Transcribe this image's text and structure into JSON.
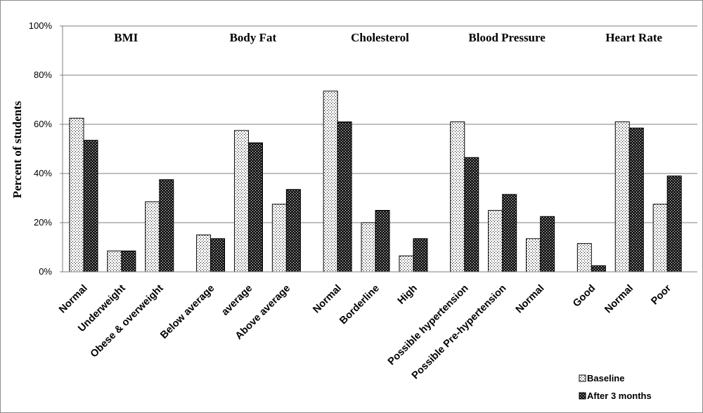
{
  "chart_data": {
    "type": "bar",
    "ylabel": "Percent of students",
    "ylim": [
      0,
      100
    ],
    "yticks": [
      0,
      20,
      40,
      60,
      80,
      100
    ],
    "ytick_labels": [
      "0%",
      "20%",
      "40%",
      "60%",
      "80%",
      "100%"
    ],
    "grid": true,
    "legend_position": "bottom-right",
    "series": [
      {
        "name": "Baseline",
        "pattern": "dotted-light"
      },
      {
        "name": "After 3 months",
        "pattern": "checker-dark"
      }
    ],
    "groups": [
      {
        "title": "BMI",
        "categories": [
          {
            "label": "Normal",
            "values": [
              62.5,
              53.5
            ]
          },
          {
            "label": "Underweight",
            "values": [
              8.5,
              8.5
            ]
          },
          {
            "label": "Obese & overweight",
            "values": [
              28.5,
              37.5
            ]
          }
        ]
      },
      {
        "title": "Body Fat",
        "categories": [
          {
            "label": "Below average",
            "values": [
              15,
              13.5
            ]
          },
          {
            "label": "average",
            "values": [
              57.5,
              52.5
            ]
          },
          {
            "label": "Above average",
            "values": [
              27.5,
              33.5
            ]
          }
        ]
      },
      {
        "title": "Cholesterol",
        "categories": [
          {
            "label": "Normal",
            "values": [
              73.5,
              61
            ]
          },
          {
            "label": "Borderline",
            "values": [
              20,
              25
            ]
          },
          {
            "label": "High",
            "values": [
              6.5,
              13.5
            ]
          }
        ]
      },
      {
        "title": "Blood Pressure",
        "categories": [
          {
            "label": "Possible hypertension",
            "values": [
              61,
              46.5
            ]
          },
          {
            "label": "Possible Pre-hypertension",
            "values": [
              25,
              31.5
            ]
          },
          {
            "label": "Normal",
            "values": [
              13.5,
              22.5
            ]
          }
        ]
      },
      {
        "title": "Heart  Rate",
        "categories": [
          {
            "label": "Good",
            "values": [
              11.5,
              2.5
            ]
          },
          {
            "label": "Normal",
            "values": [
              61,
              58.5
            ]
          },
          {
            "label": "Poor",
            "values": [
              27.5,
              39
            ]
          }
        ]
      }
    ]
  },
  "colors": {
    "grid": "#7f7f7f",
    "axis": "#7f7f7f",
    "bar_outline": "#000000",
    "baseline_fill": "#ffffff",
    "baseline_dot": "#000000",
    "after_fill": "#1a1a1a",
    "after_dot": "#ffffff"
  }
}
